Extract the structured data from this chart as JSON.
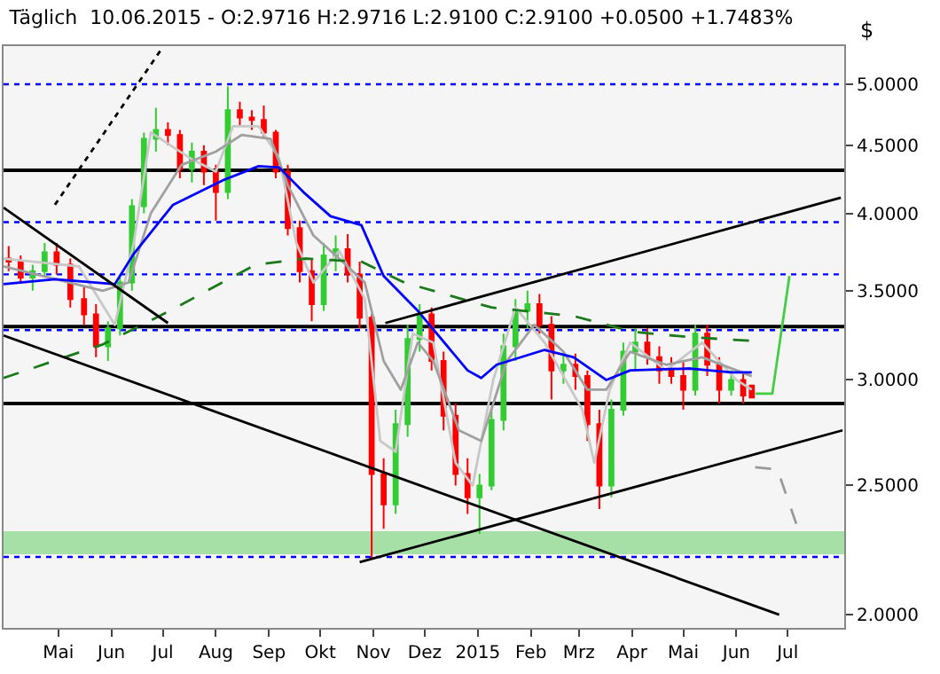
{
  "chart_data": {
    "type": "candlestick",
    "title": "Täglich  10.06.2015 - O:2.9716 H:2.9716 L:2.9100 C:2.9100 +0.0500 +1.7483%",
    "ylabel": "$",
    "log": true,
    "grid": false,
    "xlim": [
      "2014-03-30",
      "2015-08-03"
    ],
    "xticks": [
      {
        "value": "2014-05-01",
        "label": "Mai"
      },
      {
        "value": "2014-06-01",
        "label": "Jun"
      },
      {
        "value": "2014-07-01",
        "label": "Jul"
      },
      {
        "value": "2014-08-01",
        "label": "Aug"
      },
      {
        "value": "2014-09-01",
        "label": "Sep"
      },
      {
        "value": "2014-10-01",
        "label": "Okt"
      },
      {
        "value": "2014-11-01",
        "label": "Nov"
      },
      {
        "value": "2014-12-01",
        "label": "Dez"
      },
      {
        "value": "2015-01-01",
        "label": "2015"
      },
      {
        "value": "2015-02-01",
        "label": "Feb"
      },
      {
        "value": "2015-03-01",
        "label": "Mrz"
      },
      {
        "value": "2015-04-01",
        "label": "Apr"
      },
      {
        "value": "2015-05-01",
        "label": "Mai"
      },
      {
        "value": "2015-06-01",
        "label": "Jun"
      },
      {
        "value": "2015-07-01",
        "label": "Jul"
      }
    ],
    "ylim": [
      1.955,
      5.34
    ],
    "yticks": [
      {
        "value": 2,
        "label": "2.0000"
      },
      {
        "value": 2.5,
        "label": "2.5000"
      },
      {
        "value": 3,
        "label": "3.0000"
      },
      {
        "value": 3.5,
        "label": "3.5000"
      },
      {
        "value": 4,
        "label": "4.0000"
      },
      {
        "value": 4.5,
        "label": "4.5000"
      },
      {
        "value": 5,
        "label": "5.0000"
      }
    ],
    "x": [
      "2014-04-02",
      "2014-04-09",
      "2014-04-16",
      "2014-04-23",
      "2014-04-30",
      "2014-05-08",
      "2014-05-16",
      "2014-05-23",
      "2014-05-30",
      "2014-06-06",
      "2014-06-13",
      "2014-06-20",
      "2014-06-27",
      "2014-07-04",
      "2014-07-11",
      "2014-07-18",
      "2014-07-25",
      "2014-08-01",
      "2014-08-08",
      "2014-08-15",
      "2014-08-22",
      "2014-08-29",
      "2014-09-05",
      "2014-09-12",
      "2014-09-19",
      "2014-09-26",
      "2014-10-03",
      "2014-10-10",
      "2014-10-17",
      "2014-10-24",
      "2014-10-31",
      "2014-11-07",
      "2014-11-14",
      "2014-11-21",
      "2014-11-28",
      "2014-12-05",
      "2014-12-12",
      "2014-12-19",
      "2014-12-26",
      "2015-01-02",
      "2015-01-09",
      "2015-01-16",
      "2015-01-23",
      "2015-01-30",
      "2015-02-06",
      "2015-02-13",
      "2015-02-20",
      "2015-02-27",
      "2015-03-06",
      "2015-03-13",
      "2015-03-20",
      "2015-03-27",
      "2015-04-03",
      "2015-04-10",
      "2015-04-17",
      "2015-04-24",
      "2015-05-01",
      "2015-05-08",
      "2015-05-15",
      "2015-05-22",
      "2015-05-29",
      "2015-06-05",
      "2015-06-10"
    ],
    "ohlc": [
      [
        3.7,
        3.78,
        3.62,
        3.68
      ],
      [
        3.68,
        3.72,
        3.55,
        3.58
      ],
      [
        3.58,
        3.66,
        3.5,
        3.62
      ],
      [
        3.62,
        3.8,
        3.58,
        3.74
      ],
      [
        3.74,
        3.8,
        3.6,
        3.66
      ],
      [
        3.66,
        3.7,
        3.4,
        3.45
      ],
      [
        3.45,
        3.52,
        3.3,
        3.36
      ],
      [
        3.36,
        3.42,
        3.12,
        3.18
      ],
      [
        3.18,
        3.32,
        3.1,
        3.28
      ],
      [
        3.28,
        3.6,
        3.24,
        3.55
      ],
      [
        3.55,
        4.1,
        3.5,
        4.05
      ],
      [
        4.05,
        4.6,
        4.0,
        4.55
      ],
      [
        4.55,
        4.8,
        4.45,
        4.62
      ],
      [
        4.62,
        4.68,
        4.5,
        4.58
      ],
      [
        4.58,
        4.62,
        4.25,
        4.32
      ],
      [
        4.32,
        4.52,
        4.22,
        4.45
      ],
      [
        4.45,
        4.5,
        4.2,
        4.3
      ],
      [
        4.3,
        4.35,
        3.95,
        4.15
      ],
      [
        4.15,
        4.98,
        4.1,
        4.78
      ],
      [
        4.78,
        4.85,
        4.65,
        4.72
      ],
      [
        4.72,
        4.78,
        4.62,
        4.7
      ],
      [
        4.7,
        4.82,
        4.55,
        4.6
      ],
      [
        4.6,
        4.62,
        4.25,
        4.3
      ],
      [
        4.3,
        4.35,
        3.85,
        3.9
      ],
      [
        3.9,
        3.95,
        3.55,
        3.62
      ],
      [
        3.62,
        3.7,
        3.32,
        3.42
      ],
      [
        3.42,
        3.8,
        3.38,
        3.72
      ],
      [
        3.72,
        3.85,
        3.62,
        3.76
      ],
      [
        3.76,
        3.86,
        3.55,
        3.6
      ],
      [
        3.6,
        3.68,
        3.28,
        3.34
      ],
      [
        3.34,
        3.36,
        2.2,
        2.55
      ],
      [
        2.55,
        2.62,
        2.32,
        2.42
      ],
      [
        2.42,
        2.85,
        2.38,
        2.78
      ],
      [
        2.78,
        3.3,
        2.72,
        3.22
      ],
      [
        3.22,
        3.42,
        3.15,
        3.36
      ],
      [
        3.36,
        3.4,
        3.05,
        3.1
      ],
      [
        3.1,
        3.15,
        2.75,
        2.82
      ],
      [
        2.82,
        2.88,
        2.5,
        2.55
      ],
      [
        2.55,
        2.62,
        2.38,
        2.45
      ],
      [
        2.45,
        2.55,
        2.3,
        2.5
      ],
      [
        2.5,
        2.85,
        2.48,
        2.8
      ],
      [
        2.8,
        3.25,
        2.75,
        3.18
      ],
      [
        3.18,
        3.45,
        3.1,
        3.38
      ],
      [
        3.38,
        3.5,
        3.28,
        3.42
      ],
      [
        3.42,
        3.48,
        3.25,
        3.3
      ],
      [
        3.3,
        3.35,
        2.9,
        3.05
      ],
      [
        3.05,
        3.15,
        2.98,
        3.08
      ],
      [
        3.08,
        3.14,
        2.95,
        3.02
      ],
      [
        3.02,
        3.05,
        2.7,
        2.78
      ],
      [
        2.78,
        2.85,
        2.4,
        2.5
      ],
      [
        2.5,
        2.9,
        2.45,
        2.85
      ],
      [
        2.85,
        3.2,
        2.82,
        3.15
      ],
      [
        3.15,
        3.28,
        3.05,
        3.2
      ],
      [
        3.2,
        3.28,
        3.08,
        3.12
      ],
      [
        3.12,
        3.18,
        2.98,
        3.05
      ],
      [
        3.05,
        3.12,
        2.98,
        3.02
      ],
      [
        3.02,
        3.1,
        2.85,
        2.95
      ],
      [
        2.95,
        3.3,
        2.92,
        3.25
      ],
      [
        3.25,
        3.3,
        3.02,
        3.08
      ],
      [
        3.08,
        3.12,
        2.88,
        2.95
      ],
      [
        2.95,
        3.05,
        2.92,
        3.0
      ],
      [
        3.0,
        3.04,
        2.88,
        2.92
      ],
      [
        2.9716,
        2.9716,
        2.91,
        2.91
      ]
    ],
    "colors": [
      "#ff0000",
      "#ff0000",
      "#33cc33",
      "#33cc33",
      "#ff0000",
      "#ff0000",
      "#ff0000",
      "#ff0000",
      "#33cc33",
      "#33cc33",
      "#33cc33",
      "#33cc33",
      "#33cc33",
      "#ff0000",
      "#ff0000",
      "#33cc33",
      "#ff0000",
      "#ff0000",
      "#33cc33",
      "#ff0000",
      "#ff0000",
      "#ff0000",
      "#ff0000",
      "#ff0000",
      "#ff0000",
      "#ff0000",
      "#33cc33",
      "#33cc33",
      "#ff0000",
      "#ff0000",
      "#ff0000",
      "#ff0000",
      "#33cc33",
      "#33cc33",
      "#33cc33",
      "#ff0000",
      "#ff0000",
      "#ff0000",
      "#ff0000",
      "#33cc33",
      "#33cc33",
      "#33cc33",
      "#33cc33",
      "#33cc33",
      "#ff0000",
      "#ff0000",
      "#33cc33",
      "#ff0000",
      "#ff0000",
      "#ff0000",
      "#33cc33",
      "#33cc33",
      "#33cc33",
      "#ff0000",
      "#ff0000",
      "#ff0000",
      "#ff0000",
      "#33cc33",
      "#ff0000",
      "#ff0000",
      "#33cc33",
      "#ff0000",
      "#ff0000"
    ],
    "series": [
      {
        "type": "line",
        "color": "#c8c8c8",
        "line_style": "solid",
        "x": [
          "2014-03-30",
          "2014-05-13",
          "2014-06-03",
          "2014-06-14",
          "2014-06-24",
          "2014-07-17",
          "2014-08-01",
          "2014-08-11",
          "2014-08-26",
          "2014-09-07",
          "2014-09-17",
          "2014-09-27",
          "2014-10-12",
          "2014-10-27",
          "2014-11-05",
          "2014-11-14",
          "2014-11-24",
          "2014-12-06",
          "2014-12-19",
          "2014-12-29",
          "2015-01-10",
          "2015-01-23",
          "2015-02-09",
          "2015-03-03",
          "2015-03-10",
          "2015-03-19",
          "2015-03-31",
          "2015-04-21",
          "2015-05-12",
          "2015-06-01",
          "2015-06-10"
        ],
        "values": [
          3.7,
          3.65,
          3.3,
          3.8,
          4.6,
          4.4,
          4.3,
          4.65,
          4.65,
          4.4,
          3.8,
          3.55,
          3.75,
          3.45,
          2.7,
          2.65,
          3.25,
          3.2,
          2.6,
          2.5,
          3.0,
          3.4,
          3.2,
          2.85,
          2.6,
          2.95,
          3.2,
          3.05,
          3.2,
          3.0,
          2.95
        ]
      },
      {
        "type": "line",
        "color": "#a0a0a0",
        "line_style": "solid",
        "x": [
          "2014-03-30",
          "2014-05-27",
          "2014-06-11",
          "2014-06-24",
          "2014-07-12",
          "2014-08-01",
          "2014-08-16",
          "2014-09-02",
          "2014-09-12",
          "2014-09-27",
          "2014-10-12",
          "2014-10-27",
          "2014-11-07",
          "2014-11-17",
          "2014-11-27",
          "2014-12-06",
          "2014-12-21",
          "2015-01-03",
          "2015-01-18",
          "2015-02-03",
          "2015-02-20",
          "2015-03-06",
          "2015-03-17",
          "2015-03-31",
          "2015-04-21",
          "2015-05-12",
          "2015-06-10"
        ],
        "values": [
          3.65,
          3.5,
          3.55,
          4.0,
          4.35,
          4.45,
          4.58,
          4.55,
          4.2,
          3.85,
          3.7,
          3.55,
          3.1,
          2.95,
          3.2,
          3.1,
          2.75,
          2.7,
          3.1,
          3.3,
          3.15,
          2.95,
          2.95,
          3.15,
          3.08,
          3.12,
          3.02
        ]
      },
      {
        "type": "line",
        "color": "#0000ff",
        "line_style": "solid",
        "x": [
          "2014-03-30",
          "2014-04-29",
          "2014-06-03",
          "2014-06-14",
          "2014-07-07",
          "2014-08-06",
          "2014-08-26",
          "2014-09-07",
          "2014-09-22",
          "2014-10-07",
          "2014-10-25",
          "2014-11-07",
          "2014-11-27",
          "2014-12-26",
          "2015-01-03",
          "2015-01-12",
          "2015-02-09",
          "2015-02-26",
          "2015-03-17",
          "2015-03-31",
          "2015-05-05",
          "2015-05-29",
          "2015-06-10"
        ],
        "values": [
          3.54,
          3.57,
          3.54,
          3.73,
          4.06,
          4.24,
          4.34,
          4.33,
          4.14,
          3.98,
          3.92,
          3.59,
          3.38,
          3.05,
          3.01,
          3.08,
          3.16,
          3.12,
          3.0,
          3.05,
          3.06,
          3.04,
          3.04
        ]
      },
      {
        "type": "line",
        "color": "#1a7a1a",
        "line_style": "dashed",
        "x": [
          "2014-03-30",
          "2014-05-27",
          "2014-07-05",
          "2014-08-24",
          "2014-09-22",
          "2014-10-25",
          "2014-11-19",
          "2015-01-09",
          "2015-02-26",
          "2015-04-02",
          "2015-05-05",
          "2015-06-10"
        ],
        "values": [
          3.01,
          3.19,
          3.38,
          3.66,
          3.7,
          3.68,
          3.55,
          3.4,
          3.35,
          3.26,
          3.23,
          3.21
        ]
      },
      {
        "type": "line",
        "color": "#000000",
        "line_style": "solid",
        "x": [
          "2014-03-30",
          "2015-06-26"
        ],
        "values": [
          3.24,
          2.0
        ]
      },
      {
        "type": "line",
        "color": "#000000",
        "line_style": "solid",
        "x": [
          "2014-03-30",
          "2014-07-04"
        ],
        "values": [
          4.04,
          3.31
        ]
      },
      {
        "type": "line",
        "color": "#000000",
        "line_style": "dotted",
        "x": [
          "2014-04-29",
          "2014-07-01"
        ],
        "values": [
          4.06,
          5.33
        ]
      },
      {
        "type": "line",
        "color": "#000000",
        "line_style": "solid",
        "x": [
          "2014-11-08",
          "2015-08-01"
        ],
        "values": [
          3.31,
          4.11
        ]
      },
      {
        "type": "line",
        "color": "#000000",
        "line_style": "solid",
        "x": [
          "2014-10-24",
          "2015-08-02"
        ],
        "values": [
          2.19,
          2.75
        ]
      },
      {
        "type": "line",
        "color": "#44cc44",
        "line_style": "solid",
        "x": [
          "2015-06-12",
          "2015-06-22",
          "2015-07-02"
        ],
        "values": [
          2.93,
          2.93,
          3.59
        ]
      },
      {
        "type": "line",
        "color": "#999999",
        "line_style": "dashed",
        "x": [
          "2015-06-12",
          "2015-06-25",
          "2015-07-07"
        ],
        "values": [
          2.58,
          2.57,
          2.32
        ]
      }
    ],
    "ref_lines": [
      {
        "axis": "y",
        "value": 4.31,
        "color": "#000000",
        "line_style": "solid"
      },
      {
        "axis": "y",
        "value": 3.29,
        "color": "#000000",
        "line_style": "solid"
      },
      {
        "axis": "y",
        "value": 2.88,
        "color": "#000000",
        "line_style": "solid"
      },
      {
        "axis": "y",
        "value": 5.0,
        "color": "#0000ff",
        "line_style": "dotted"
      },
      {
        "axis": "y",
        "value": 3.94,
        "color": "#0000ff",
        "line_style": "dotted"
      },
      {
        "axis": "y",
        "value": 3.6,
        "color": "#0000ff",
        "line_style": "dotted"
      },
      {
        "axis": "y",
        "value": 3.27,
        "color": "#0000ff",
        "line_style": "dotted"
      },
      {
        "axis": "y",
        "value": 2.21,
        "color": "#0000ff",
        "line_style": "dotted"
      }
    ],
    "bands": [
      {
        "axis": "y",
        "from": 2.22,
        "to": 2.31,
        "color": "#a6e0a6"
      }
    ]
  }
}
